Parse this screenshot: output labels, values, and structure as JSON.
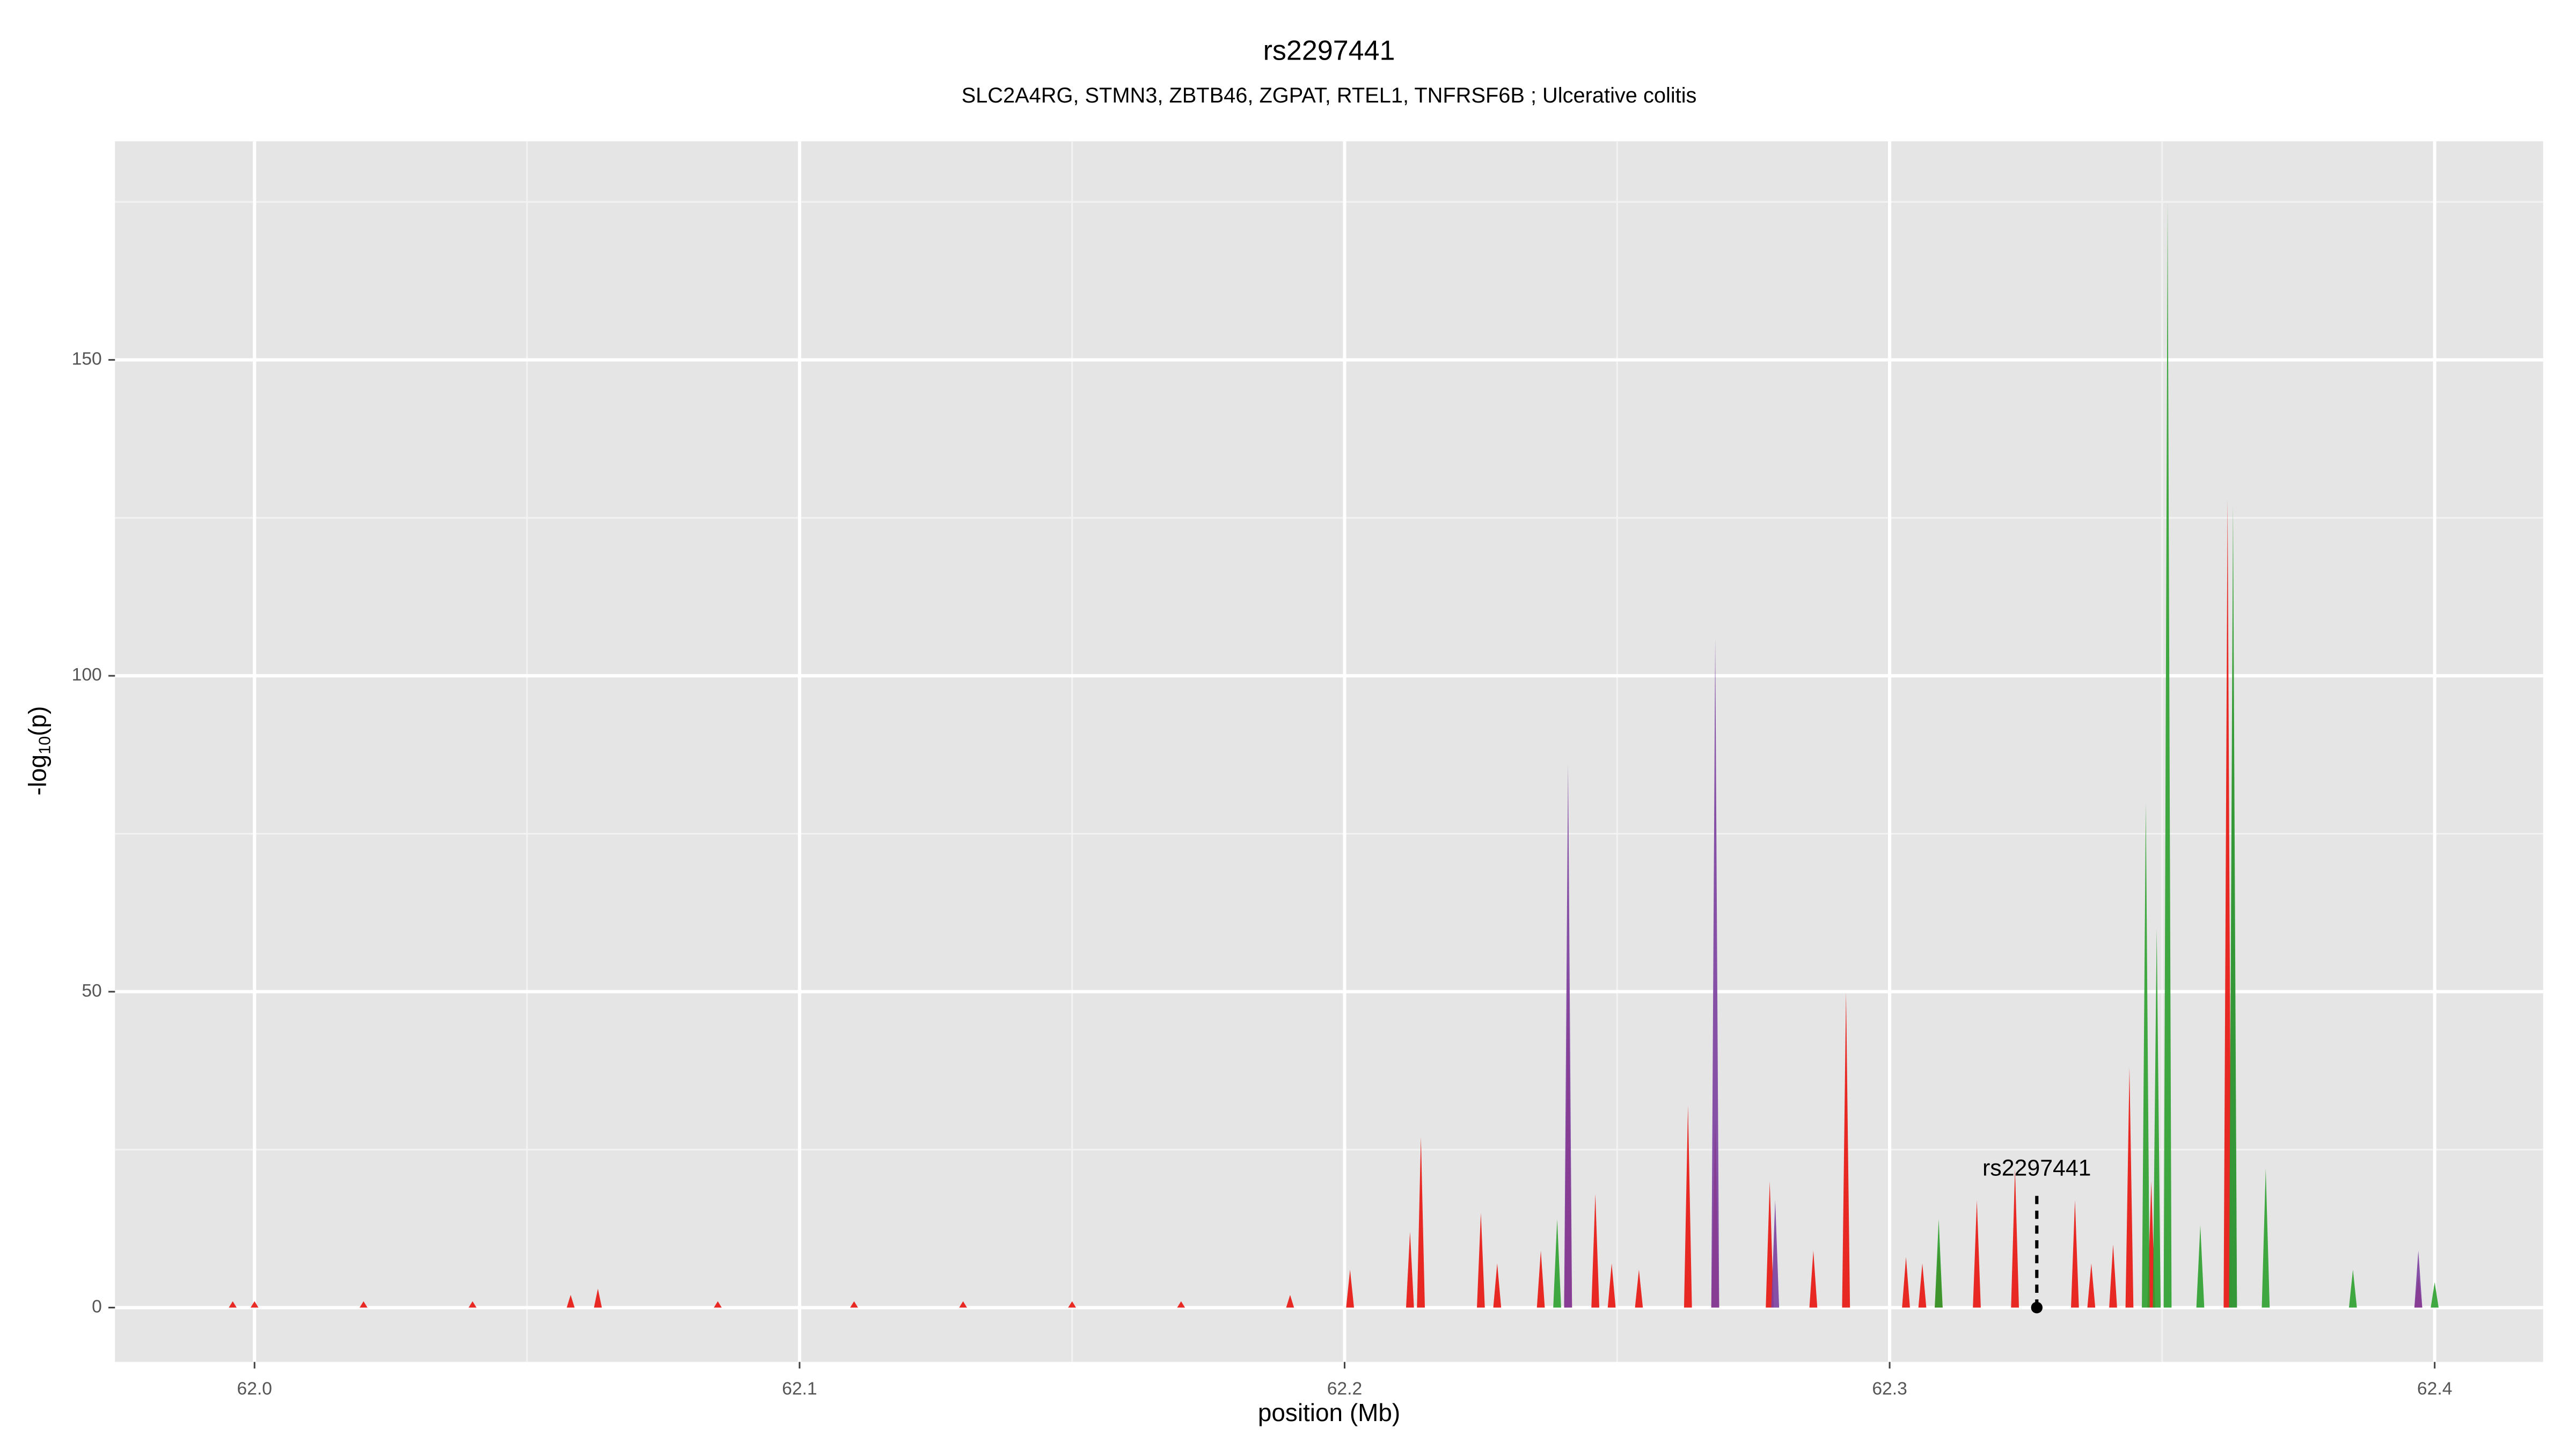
{
  "chart_data": {
    "type": "spike",
    "title": "rs2297441",
    "subtitle": "SLC2A4RG, STMN3, ZBTB46, ZGPAT, RTEL1, TNFRSF6B ; Ulcerative colitis",
    "xlabel": "position (Mb)",
    "ylabel": [
      "-log",
      "10",
      "(p)"
    ],
    "xlim": [
      61.9744,
      62.4199
    ],
    "ylim": [
      -8.6,
      184.6
    ],
    "xticks": [
      {
        "value": 62,
        "label": "62.0"
      },
      62.1,
      62.2,
      62.3,
      62.4
    ],
    "yticks": [
      0,
      50,
      100,
      150
    ],
    "x_minor_grid": [
      62.05,
      62.15,
      62.25,
      62.35
    ],
    "y_minor_grid": [
      25,
      75,
      125,
      175
    ],
    "grid": true,
    "series": [
      {
        "color": "#e8130d",
        "x": [
          61.996,
          62.0,
          62.02,
          62.04,
          62.058,
          62.063,
          62.085,
          62.11,
          62.13,
          62.15,
          62.17,
          62.19,
          62.201,
          62.212,
          62.214,
          62.225,
          62.228,
          62.236,
          62.241,
          62.246,
          62.249,
          62.254,
          62.263,
          62.268,
          62.278,
          62.286,
          62.292,
          62.303,
          62.306,
          62.309,
          62.316,
          62.323,
          62.334,
          62.337,
          62.341,
          62.344,
          62.348,
          62.362,
          62.397
        ],
        "values": [
          1,
          1,
          1,
          1,
          2,
          3,
          1,
          1,
          1,
          1,
          1,
          2,
          6,
          12,
          27,
          15,
          7,
          9,
          55,
          18,
          7,
          6,
          32,
          30,
          20,
          9,
          50,
          8,
          7,
          10,
          17,
          22,
          17,
          7,
          10,
          38,
          20,
          128,
          5
        ]
      },
      {
        "color": "#7b3fa0",
        "x": [
          62.241,
          62.268,
          62.279,
          62.363,
          62.397
        ],
        "values": [
          86,
          106,
          17,
          110,
          9
        ]
      },
      {
        "color": "#2ca02c",
        "x": [
          62.239,
          62.309,
          62.347,
          62.349,
          62.351,
          62.357,
          62.363,
          62.369,
          62.385,
          62.4
        ],
        "values": [
          14,
          14,
          80,
          60,
          175,
          13,
          127,
          22,
          6,
          4
        ]
      }
    ],
    "annotation": {
      "text": "rs2297441",
      "x": 62.327,
      "y": 0
    }
  }
}
